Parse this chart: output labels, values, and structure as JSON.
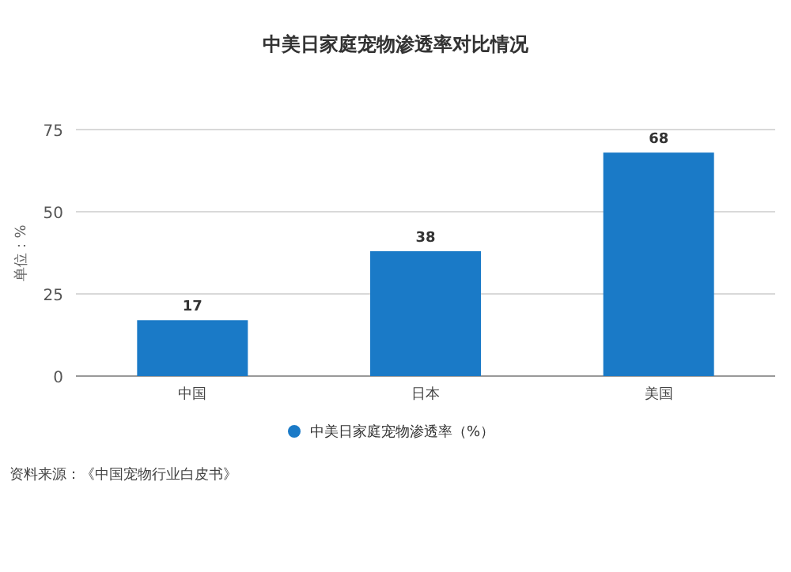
{
  "chart_data": {
    "type": "bar",
    "title": "中美日家庭宠物渗透率对比情况",
    "ylabel": "单位：%",
    "categories": [
      "中国",
      "日本",
      "美国"
    ],
    "series": [
      {
        "name": "中美日家庭宠物渗透率（%）",
        "color": "#1a7ac7",
        "values": [
          17,
          38,
          68
        ]
      }
    ],
    "ylim": [
      0,
      75
    ],
    "yticks": [
      0,
      25,
      50,
      75
    ],
    "grid": "y",
    "legend": "bottom",
    "data_labels": true,
    "annotations": [
      "资料来源：《中国宠物行业白皮书》"
    ]
  }
}
